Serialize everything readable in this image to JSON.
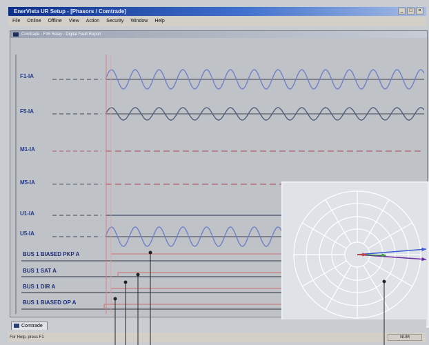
{
  "window": {
    "title": "EnerVista UR Setup - [Phasors / Comtrade]",
    "buttons": {
      "minimize": "_",
      "maximize": "□",
      "close": "×"
    }
  },
  "menu": [
    "File",
    "Online",
    "Offline",
    "View",
    "Action",
    "Security",
    "Window",
    "Help"
  ],
  "document": {
    "title": "Comtrade - F35 Relay - Digital Fault Report"
  },
  "analog_channels": [
    {
      "label": "F1-IA",
      "color": "#6f80c8"
    },
    {
      "label": "F5-IA",
      "color": "#51607a"
    },
    {
      "label": "M1-IA",
      "color": "#b65a6a"
    },
    {
      "label": "M5-IA",
      "color": "#b65a6a"
    },
    {
      "label": "U1-IA",
      "color": "#3f4f6a"
    },
    {
      "label": "U5-IA",
      "color": "#6f80c8"
    }
  ],
  "digital_channels": [
    {
      "label": "BUS 1 BIASED PKP A"
    },
    {
      "label": "BUS 1 SAT A"
    },
    {
      "label": "BUS 1 DIR A"
    },
    {
      "label": "BUS 1 BIASED OP A"
    }
  ],
  "phasor_plot": {
    "vectors": [
      {
        "name": "blue",
        "color": "#3a5bd6"
      },
      {
        "name": "purple",
        "color": "#6b2aa0"
      },
      {
        "name": "green",
        "color": "#3b9a3b"
      },
      {
        "name": "red",
        "color": "#c94040"
      }
    ]
  },
  "tabs": [
    {
      "label": "Comtrade"
    }
  ],
  "status": {
    "text": "For Help, press F1",
    "panel": "NUM"
  }
}
